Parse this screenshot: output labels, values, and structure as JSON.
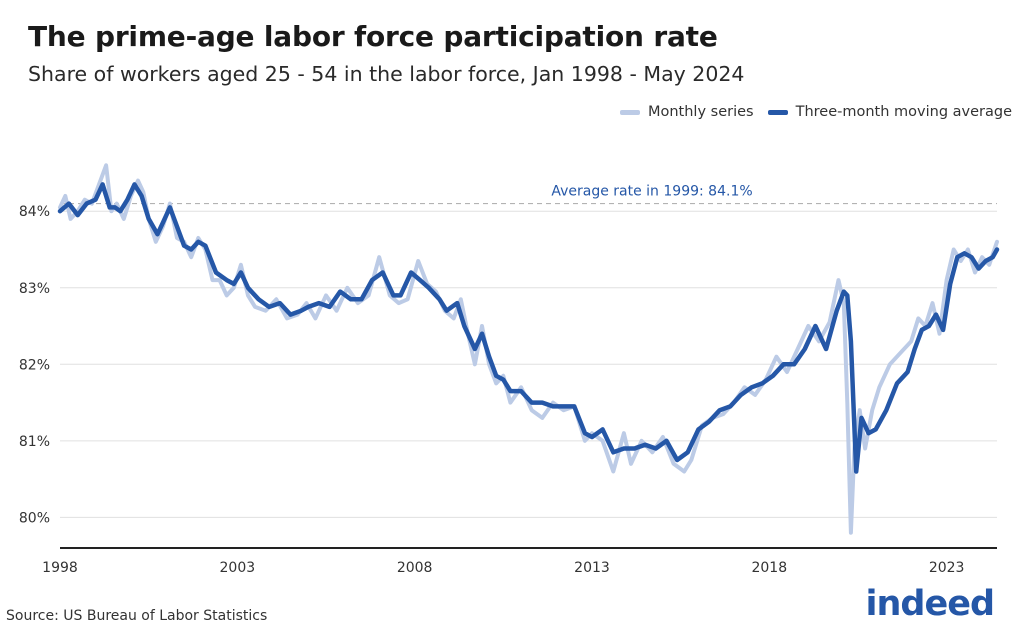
{
  "title": "The prime-age labor force participation rate",
  "subtitle": "Share of workers aged 25 - 54 in the labor force, Jan 1998 - May 2024",
  "legend": {
    "monthly_label": "Monthly series",
    "avg_label": "Three-month moving average"
  },
  "source": "Source: US Bureau of Labor Statistics",
  "logo_text": "indeed",
  "colors": {
    "monthly": "#bccbe6",
    "average": "#2557a7",
    "grid": "#e0e0e0",
    "reference": "#b3b3b3",
    "axis": "#222222",
    "text": "#333333"
  },
  "chart_data": {
    "type": "line",
    "title": "The prime-age labor force participation rate",
    "subtitle": "Share of workers aged 25 - 54 in the labor force, Jan 1998 - May 2024",
    "xlabel": "",
    "ylabel": "",
    "xlim": [
      1998.0,
      2024.42
    ],
    "ylim": [
      79.6,
      84.8
    ],
    "x_ticks": [
      1998,
      2003,
      2008,
      2013,
      2018,
      2023
    ],
    "x_tick_labels": [
      "1998",
      "2003",
      "2008",
      "2013",
      "2018",
      "2023"
    ],
    "y_ticks": [
      80,
      81,
      82,
      83,
      84
    ],
    "y_tick_labels": [
      "80%",
      "81%",
      "82%",
      "83%",
      "84%"
    ],
    "grid": "horizontal",
    "legend_position": "top-right",
    "reference_line": {
      "y": 84.1,
      "label": "Average rate in 1999: 84.1%"
    },
    "series": [
      {
        "name": "Three-month moving average",
        "x": [
          1998.0,
          1998.25,
          1998.5,
          1998.75,
          1999.0,
          1999.2,
          1999.4,
          1999.55,
          1999.7,
          1999.9,
          2000.1,
          2000.3,
          2000.5,
          2000.75,
          2000.9,
          2001.1,
          2001.3,
          2001.5,
          2001.7,
          2001.9,
          2002.1,
          2002.4,
          2002.7,
          2002.9,
          2003.1,
          2003.3,
          2003.6,
          2003.9,
          2004.2,
          2004.5,
          2004.8,
          2005.0,
          2005.3,
          2005.6,
          2005.9,
          2006.2,
          2006.5,
          2006.8,
          2007.1,
          2007.4,
          2007.6,
          2007.9,
          2008.15,
          2008.4,
          2008.7,
          2008.9,
          2009.2,
          2009.4,
          2009.7,
          2009.9,
          2010.1,
          2010.3,
          2010.5,
          2010.7,
          2011.0,
          2011.3,
          2011.6,
          2011.9,
          2012.2,
          2012.5,
          2012.8,
          2013.0,
          2013.3,
          2013.6,
          2013.9,
          2014.2,
          2014.5,
          2014.8,
          2015.1,
          2015.4,
          2015.7,
          2016.0,
          2016.3,
          2016.6,
          2016.9,
          2017.2,
          2017.5,
          2017.8,
          2018.1,
          2018.4,
          2018.7,
          2019.0,
          2019.3,
          2019.6,
          2019.9,
          2020.1,
          2020.2,
          2020.3,
          2020.45,
          2020.6,
          2020.8,
          2021.0,
          2021.3,
          2021.6,
          2021.9,
          2022.1,
          2022.3,
          2022.5,
          2022.7,
          2022.9,
          2023.1,
          2023.3,
          2023.5,
          2023.7,
          2023.9,
          2024.1,
          2024.3,
          2024.42
        ],
        "values": [
          84.0,
          84.1,
          83.95,
          84.1,
          84.15,
          84.35,
          84.05,
          84.05,
          84.0,
          84.15,
          84.35,
          84.2,
          83.9,
          83.7,
          83.85,
          84.05,
          83.8,
          83.55,
          83.5,
          83.6,
          83.55,
          83.2,
          83.1,
          83.05,
          83.2,
          83.0,
          82.85,
          82.75,
          82.8,
          82.65,
          82.7,
          82.75,
          82.8,
          82.75,
          82.95,
          82.85,
          82.85,
          83.1,
          83.2,
          82.9,
          82.9,
          83.2,
          83.1,
          83.0,
          82.85,
          82.7,
          82.8,
          82.5,
          82.2,
          82.4,
          82.1,
          81.85,
          81.8,
          81.65,
          81.65,
          81.5,
          81.5,
          81.45,
          81.45,
          81.45,
          81.1,
          81.05,
          81.15,
          80.85,
          80.9,
          80.9,
          80.95,
          80.9,
          81.0,
          80.75,
          80.85,
          81.15,
          81.25,
          81.4,
          81.45,
          81.6,
          81.7,
          81.75,
          81.85,
          82.0,
          82.0,
          82.2,
          82.5,
          82.2,
          82.7,
          82.95,
          82.9,
          82.3,
          80.6,
          81.3,
          81.1,
          81.15,
          81.4,
          81.75,
          81.9,
          82.2,
          82.45,
          82.5,
          82.65,
          82.45,
          83.05,
          83.4,
          83.45,
          83.4,
          83.25,
          83.35,
          83.4,
          83.5
        ]
      },
      {
        "name": "Monthly series",
        "x": [
          1998.0,
          1998.15,
          1998.3,
          1998.5,
          1998.7,
          1998.9,
          1999.1,
          1999.3,
          1999.45,
          1999.6,
          1999.8,
          2000.0,
          2000.2,
          2000.35,
          2000.5,
          2000.7,
          2000.9,
          2001.1,
          2001.3,
          2001.5,
          2001.7,
          2001.9,
          2002.1,
          2002.3,
          2002.5,
          2002.7,
          2002.9,
          2003.1,
          2003.3,
          2003.5,
          2003.8,
          2004.1,
          2004.4,
          2004.7,
          2004.95,
          2005.2,
          2005.5,
          2005.8,
          2006.1,
          2006.4,
          2006.7,
          2007.0,
          2007.3,
          2007.55,
          2007.8,
          2008.1,
          2008.35,
          2008.6,
          2008.85,
          2009.1,
          2009.3,
          2009.5,
          2009.7,
          2009.9,
          2010.1,
          2010.3,
          2010.5,
          2010.7,
          2011.0,
          2011.3,
          2011.6,
          2011.9,
          2012.2,
          2012.5,
          2012.8,
          2013.0,
          2013.3,
          2013.6,
          2013.9,
          2014.1,
          2014.4,
          2014.7,
          2015.0,
          2015.3,
          2015.6,
          2015.8,
          2016.1,
          2016.4,
          2016.7,
          2017.0,
          2017.3,
          2017.6,
          2017.9,
          2018.2,
          2018.5,
          2018.8,
          2019.1,
          2019.4,
          2019.7,
          2019.95,
          2020.1,
          2020.2,
          2020.3,
          2020.4,
          2020.55,
          2020.7,
          2020.9,
          2021.1,
          2021.4,
          2021.7,
          2022.0,
          2022.2,
          2022.4,
          2022.6,
          2022.8,
          2023.0,
          2023.2,
          2023.4,
          2023.6,
          2023.8,
          2024.0,
          2024.2,
          2024.42
        ],
        "values": [
          84.05,
          84.2,
          83.9,
          84.0,
          84.15,
          84.1,
          84.35,
          84.6,
          84.0,
          84.1,
          83.9,
          84.2,
          84.4,
          84.25,
          83.9,
          83.6,
          83.8,
          84.1,
          83.65,
          83.6,
          83.4,
          83.65,
          83.5,
          83.1,
          83.1,
          82.9,
          83.0,
          83.3,
          82.9,
          82.75,
          82.7,
          82.85,
          82.6,
          82.65,
          82.8,
          82.6,
          82.9,
          82.7,
          83.0,
          82.8,
          82.9,
          83.4,
          82.9,
          82.8,
          82.85,
          83.35,
          83.05,
          82.95,
          82.7,
          82.6,
          82.85,
          82.4,
          82.0,
          82.5,
          82.0,
          81.75,
          81.85,
          81.5,
          81.7,
          81.4,
          81.3,
          81.5,
          81.4,
          81.45,
          81.0,
          81.1,
          81.0,
          80.6,
          81.1,
          80.7,
          81.0,
          80.85,
          81.05,
          80.7,
          80.6,
          80.75,
          81.2,
          81.3,
          81.35,
          81.5,
          81.7,
          81.6,
          81.8,
          82.1,
          81.9,
          82.2,
          82.5,
          82.3,
          82.55,
          83.1,
          82.8,
          81.5,
          79.8,
          80.9,
          81.4,
          80.9,
          81.4,
          81.7,
          82.0,
          82.15,
          82.3,
          82.6,
          82.5,
          82.8,
          82.4,
          83.1,
          83.5,
          83.35,
          83.5,
          83.2,
          83.4,
          83.3,
          83.6
        ]
      }
    ]
  }
}
